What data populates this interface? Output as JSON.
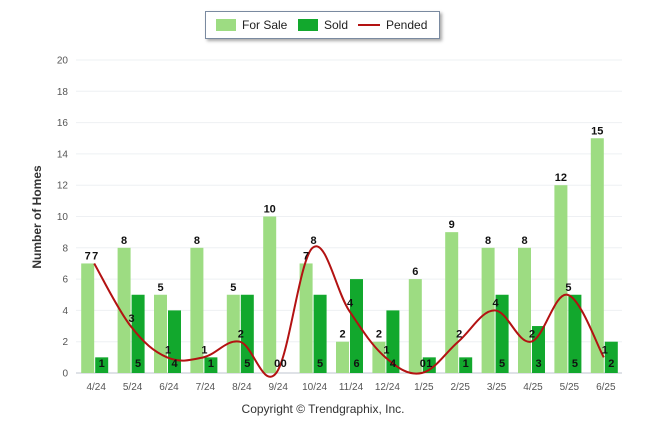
{
  "chart_data": {
    "type": "bar",
    "title": "",
    "xlabel": "",
    "ylabel": "Number of Homes",
    "ylim": [
      0,
      20
    ],
    "yticks": [
      0,
      2,
      4,
      6,
      8,
      10,
      12,
      14,
      16,
      18,
      20
    ],
    "categories": [
      "4/24",
      "5/24",
      "6/24",
      "7/24",
      "8/24",
      "9/24",
      "10/24",
      "11/24",
      "12/24",
      "1/25",
      "2/25",
      "3/25",
      "4/25",
      "5/25",
      "6/25"
    ],
    "series": [
      {
        "name": "For Sale",
        "type": "bar",
        "color": "#9ddc82",
        "values": [
          7,
          8,
          5,
          8,
          5,
          10,
          7,
          2,
          2,
          6,
          9,
          8,
          8,
          12,
          15
        ]
      },
      {
        "name": "Sold",
        "type": "bar",
        "color": "#12a82d",
        "values": [
          1,
          5,
          4,
          1,
          5,
          0,
          5,
          6,
          4,
          1,
          1,
          5,
          3,
          5,
          2
        ]
      },
      {
        "name": "Pended",
        "type": "line",
        "color": "#b31212",
        "values": [
          7,
          3,
          1,
          1,
          2,
          0,
          8,
          4,
          1,
          0,
          2,
          4,
          2,
          5,
          1
        ]
      }
    ],
    "legend_position": "top-center",
    "grid": true
  },
  "legend": {
    "for_sale": "For Sale",
    "sold": "Sold",
    "pended": "Pended"
  },
  "footer": "Copyright © Trendgraphix, Inc."
}
